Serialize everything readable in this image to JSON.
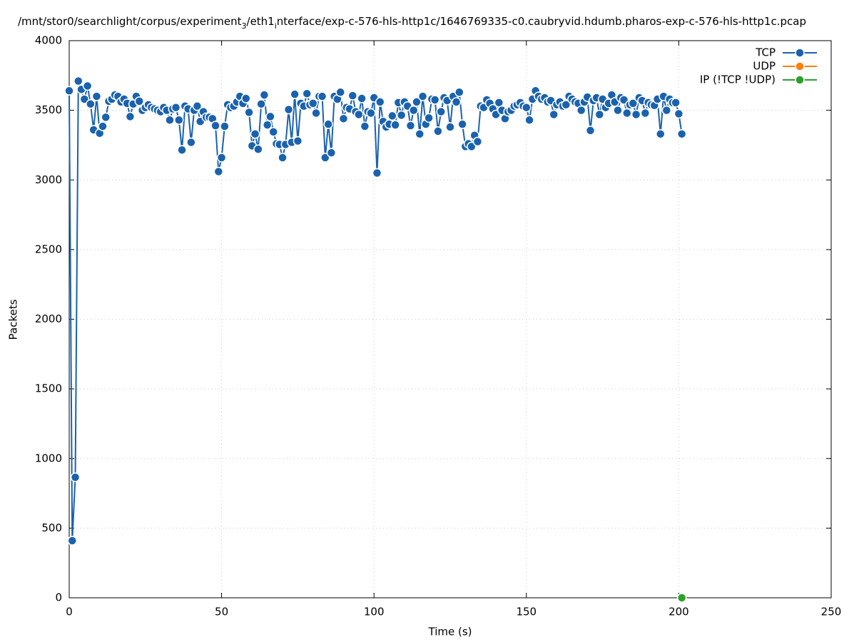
{
  "chart_data": {
    "type": "line",
    "title": [
      {
        "text": "/mnt/stor0/searchlight/corpus/experiment",
        "sub": false
      },
      {
        "text": "3",
        "sub": true
      },
      {
        "text": "/eth1",
        "sub": false
      },
      {
        "text": "i",
        "sub": true
      },
      {
        "text": "nterface/exp-c-576-hls-http1c/1646769335-c0.caubryvid.hdumb.pharos-exp-c-576-hls-http1c.pcap",
        "sub": false
      }
    ],
    "x_label": "Time (s)",
    "y_label": "Packets",
    "xlim": [
      0,
      250
    ],
    "xticks": [
      0,
      50,
      100,
      150,
      200,
      250
    ],
    "ylim": [
      0,
      4000
    ],
    "yticks": [
      0,
      500,
      1000,
      1500,
      2000,
      2500,
      3000,
      3500,
      4000
    ],
    "grid": true,
    "legend": "top-right",
    "series": [
      {
        "name": "TCP",
        "color": "#1a62ae",
        "x": [
          0,
          1,
          2,
          3,
          4,
          5,
          6,
          7,
          8,
          9,
          10,
          11,
          12,
          13,
          14,
          15,
          16,
          17,
          18,
          19,
          20,
          21,
          22,
          23,
          24,
          25,
          26,
          27,
          28,
          29,
          30,
          31,
          32,
          33,
          34,
          35,
          36,
          37,
          38,
          39,
          40,
          41,
          42,
          43,
          44,
          45,
          46,
          47,
          48,
          49,
          50,
          51,
          52,
          53,
          54,
          55,
          56,
          57,
          58,
          59,
          60,
          61,
          62,
          63,
          64,
          65,
          66,
          67,
          68,
          69,
          70,
          71,
          72,
          73,
          74,
          75,
          76,
          77,
          78,
          79,
          80,
          81,
          82,
          83,
          84,
          85,
          86,
          87,
          88,
          89,
          90,
          91,
          92,
          93,
          94,
          95,
          96,
          97,
          98,
          99,
          100,
          101,
          102,
          103,
          104,
          105,
          106,
          107,
          108,
          109,
          110,
          111,
          112,
          113,
          114,
          115,
          116,
          117,
          118,
          119,
          120,
          121,
          122,
          123,
          124,
          125,
          126,
          127,
          128,
          129,
          130,
          131,
          132,
          133,
          134,
          135,
          136,
          137,
          138,
          139,
          140,
          141,
          142,
          143,
          144,
          145,
          146,
          147,
          148,
          149,
          150,
          151,
          152,
          153,
          154,
          155,
          156,
          157,
          158,
          159,
          160,
          161,
          162,
          163,
          164,
          165,
          166,
          167,
          168,
          169,
          170,
          171,
          172,
          173,
          174,
          175,
          176,
          177,
          178,
          179,
          180,
          181,
          182,
          183,
          184,
          185,
          186,
          187,
          188,
          189,
          190,
          191,
          192,
          193,
          194,
          195,
          196,
          197,
          198,
          199,
          200,
          201
        ],
        "values": [
          3640,
          410,
          865,
          3710,
          3650,
          3580,
          3675,
          3545,
          3360,
          3600,
          3335,
          3385,
          3450,
          3565,
          3580,
          3610,
          3600,
          3560,
          3580,
          3550,
          3455,
          3545,
          3600,
          3565,
          3500,
          3520,
          3540,
          3520,
          3510,
          3500,
          3490,
          3520,
          3500,
          3430,
          3510,
          3520,
          3430,
          3215,
          3530,
          3510,
          3270,
          3500,
          3530,
          3420,
          3490,
          3450,
          3450,
          3440,
          3390,
          3060,
          3160,
          3385,
          3540,
          3520,
          3530,
          3560,
          3600,
          3550,
          3585,
          3485,
          3245,
          3330,
          3220,
          3545,
          3610,
          3395,
          3455,
          3345,
          3260,
          3255,
          3160,
          3255,
          3505,
          3270,
          3615,
          3280,
          3550,
          3530,
          3620,
          3540,
          3550,
          3480,
          3600,
          3600,
          3160,
          3400,
          3195,
          3600,
          3580,
          3630,
          3440,
          3520,
          3510,
          3605,
          3490,
          3470,
          3585,
          3385,
          3490,
          3480,
          3590,
          3050,
          3560,
          3420,
          3380,
          3400,
          3460,
          3395,
          3555,
          3465,
          3560,
          3530,
          3390,
          3500,
          3560,
          3330,
          3600,
          3400,
          3445,
          3580,
          3575,
          3350,
          3490,
          3590,
          3570,
          3380,
          3600,
          3560,
          3630,
          3400,
          3240,
          3260,
          3240,
          3320,
          3275,
          3530,
          3520,
          3575,
          3550,
          3510,
          3470,
          3555,
          3500,
          3440,
          3490,
          3500,
          3530,
          3540,
          3555,
          3530,
          3520,
          3430,
          3580,
          3640,
          3600,
          3580,
          3590,
          3560,
          3570,
          3470,
          3540,
          3560,
          3530,
          3540,
          3600,
          3580,
          3560,
          3550,
          3500,
          3560,
          3595,
          3355,
          3570,
          3590,
          3470,
          3580,
          3520,
          3550,
          3610,
          3560,
          3500,
          3590,
          3575,
          3480,
          3540,
          3550,
          3470,
          3590,
          3570,
          3480,
          3555,
          3540,
          3535,
          3580,
          3330,
          3600,
          3500,
          3580,
          3555,
          3555,
          3475,
          3330
        ]
      },
      {
        "name": "UDP",
        "color": "#ff7f0e",
        "x": [
          201
        ],
        "values": [
          0
        ]
      },
      {
        "name": "IP (!TCP  !UDP)",
        "color": "#2ca02c",
        "x": [
          201
        ],
        "values": [
          0
        ]
      }
    ]
  }
}
